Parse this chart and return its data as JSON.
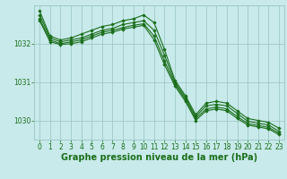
{
  "bg_color": "#c8eaea",
  "grid_color": "#a0c8c8",
  "line_color": "#1a6e1a",
  "marker_color": "#1a6e1a",
  "xlabel": "Graphe pression niveau de la mer (hPa)",
  "xlabel_fontsize": 7.0,
  "tick_fontsize": 5.5,
  "ylim": [
    1029.5,
    1033.0
  ],
  "xlim": [
    -0.5,
    23.5
  ],
  "yticks": [
    1030,
    1031,
    1032
  ],
  "xticks": [
    0,
    1,
    2,
    3,
    4,
    5,
    6,
    7,
    8,
    9,
    10,
    11,
    12,
    13,
    14,
    15,
    16,
    17,
    18,
    19,
    20,
    21,
    22,
    23
  ],
  "series": [
    {
      "x": [
        0,
        1,
        2,
        3,
        4,
        5,
        6,
        7,
        8,
        9,
        10,
        11,
        12,
        13,
        14,
        15,
        16,
        17,
        18,
        19,
        20,
        21,
        22,
        23
      ],
      "y": [
        1032.85,
        1032.2,
        1032.1,
        1032.15,
        1032.25,
        1032.35,
        1032.45,
        1032.5,
        1032.6,
        1032.65,
        1032.75,
        1032.55,
        1031.85,
        1031.05,
        1030.65,
        1030.15,
        1030.45,
        1030.5,
        1030.45,
        1030.25,
        1030.05,
        1030.0,
        1029.95,
        1029.8
      ]
    },
    {
      "x": [
        0,
        1,
        2,
        3,
        4,
        5,
        6,
        7,
        8,
        9,
        10,
        11,
        12,
        13,
        14,
        15,
        16,
        17,
        18,
        19,
        20,
        21,
        22,
        23
      ],
      "y": [
        1032.75,
        1032.15,
        1032.05,
        1032.1,
        1032.15,
        1032.25,
        1032.35,
        1032.4,
        1032.5,
        1032.55,
        1032.6,
        1032.35,
        1031.7,
        1031.0,
        1030.6,
        1030.1,
        1030.38,
        1030.42,
        1030.38,
        1030.18,
        1029.98,
        1029.93,
        1029.88,
        1029.72
      ]
    },
    {
      "x": [
        0,
        1,
        2,
        3,
        4,
        5,
        6,
        7,
        8,
        9,
        10,
        11,
        12,
        13,
        14,
        15,
        16,
        17,
        18,
        19,
        20,
        21,
        22,
        23
      ],
      "y": [
        1032.65,
        1032.1,
        1032.0,
        1032.05,
        1032.1,
        1032.2,
        1032.3,
        1032.35,
        1032.42,
        1032.48,
        1032.52,
        1032.2,
        1031.55,
        1030.95,
        1030.55,
        1030.05,
        1030.3,
        1030.35,
        1030.3,
        1030.1,
        1029.92,
        1029.87,
        1029.82,
        1029.67
      ]
    },
    {
      "x": [
        0,
        1,
        2,
        3,
        4,
        5,
        6,
        7,
        8,
        9,
        10,
        11,
        12,
        13,
        14,
        15,
        16,
        17,
        18,
        19,
        20,
        21,
        22,
        23
      ],
      "y": [
        1032.6,
        1032.05,
        1031.98,
        1032.0,
        1032.05,
        1032.15,
        1032.25,
        1032.3,
        1032.38,
        1032.43,
        1032.48,
        1032.1,
        1031.45,
        1030.9,
        1030.5,
        1030.0,
        1030.25,
        1030.3,
        1030.25,
        1030.05,
        1029.88,
        1029.83,
        1029.78,
        1029.63
      ]
    }
  ]
}
